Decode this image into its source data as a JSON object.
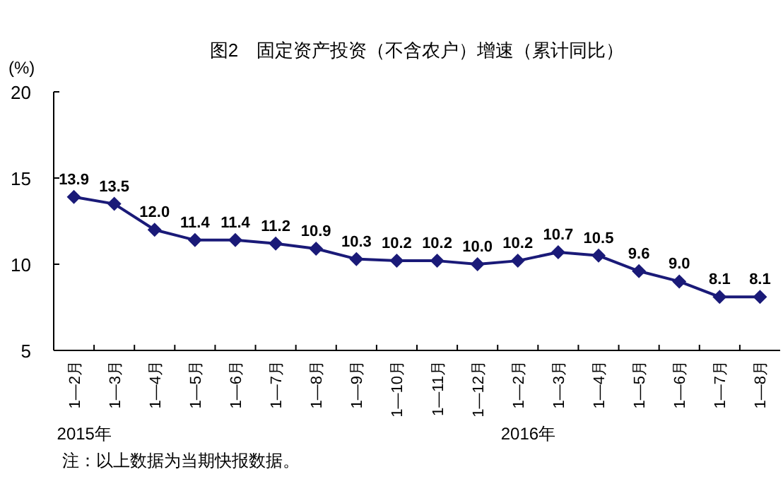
{
  "chart_data": {
    "type": "line",
    "title": "图2　固定资产投资（不含农户）增速（累计同比）",
    "ylabel": "(%)",
    "categories": [
      "1—2月",
      "1—3月",
      "1—4月",
      "1—5月",
      "1—6月",
      "1—7月",
      "1—8月",
      "1—9月",
      "1—10月",
      "1—11月",
      "1—12月",
      "1—2月",
      "1—3月",
      "1—4月",
      "1—5月",
      "1—6月",
      "1—7月",
      "1—8月"
    ],
    "series": [
      {
        "color": "#1a1a78",
        "values": [
          13.9,
          13.5,
          12.0,
          11.4,
          11.4,
          11.2,
          10.9,
          10.3,
          10.2,
          10.2,
          10.0,
          10.2,
          10.7,
          10.5,
          9.6,
          9.0,
          8.1,
          8.1
        ],
        "value_labels": [
          "13.9",
          "13.5",
          "12.0",
          "11.4",
          "11.4",
          "11.2",
          "10.9",
          "10.3",
          "10.2",
          "10.2",
          "10.0",
          "10.2",
          "10.7",
          "10.5",
          "9.6",
          "9.0",
          "8.1",
          "8.1"
        ]
      }
    ],
    "ylim": [
      5,
      20
    ],
    "yticks": [
      5,
      10,
      15,
      20
    ],
    "marker": "diamond",
    "grid": false,
    "annotations": [
      "2015年",
      "2016年",
      "注：以上数据为当期快报数据。"
    ]
  }
}
